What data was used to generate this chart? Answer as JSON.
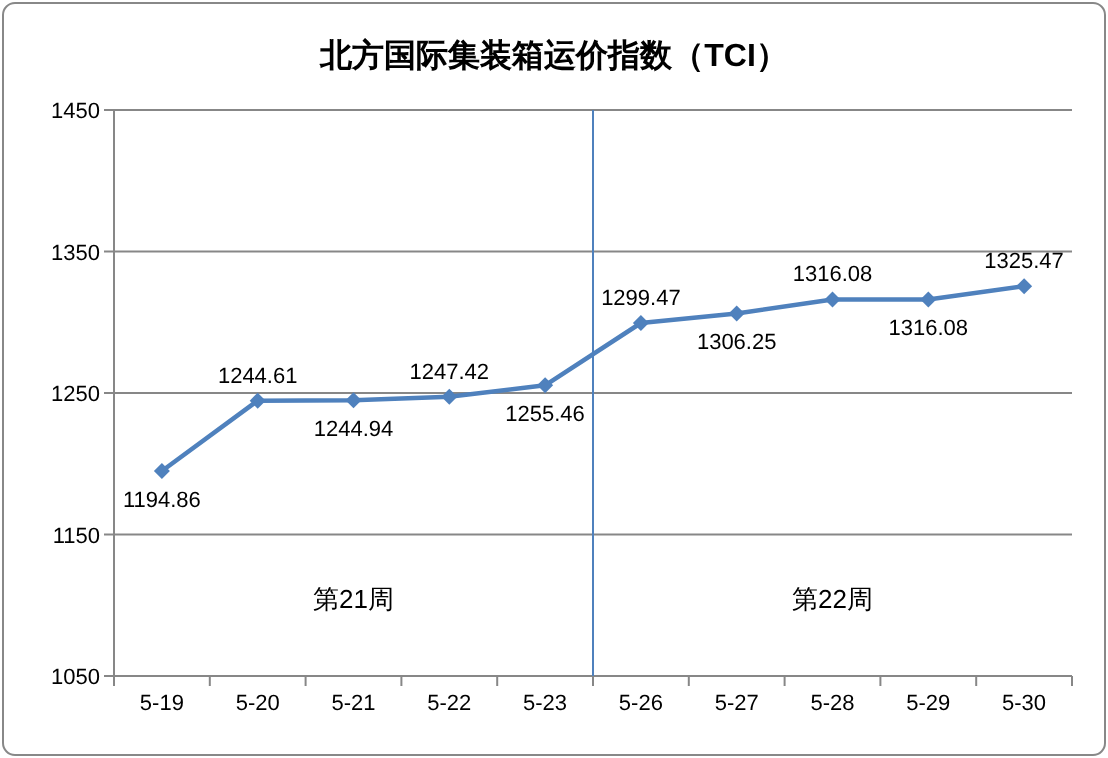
{
  "chart_data": {
    "type": "line",
    "title": "北方国际集装箱运价指数（TCI）",
    "categories": [
      "5-19",
      "5-20",
      "5-21",
      "5-22",
      "5-23",
      "5-26",
      "5-27",
      "5-28",
      "5-29",
      "5-30"
    ],
    "series": [
      {
        "color": "#4f81bd",
        "values": [
          1194.86,
          1244.61,
          1244.94,
          1247.42,
          1255.46,
          1299.47,
          1306.25,
          1316.08,
          1316.08,
          1325.47
        ]
      }
    ],
    "ylim": [
      1050,
      1450
    ],
    "yticks": [
      1050,
      1150,
      1250,
      1350,
      1450
    ],
    "grid": "y",
    "marker": "diamond",
    "line_style": "solid",
    "data_labels": true,
    "ref_lines": [
      {
        "axis": "x",
        "value": "5-26",
        "color": "#4f81bd"
      }
    ],
    "annotations": [
      "第21周",
      "第22周"
    ]
  }
}
